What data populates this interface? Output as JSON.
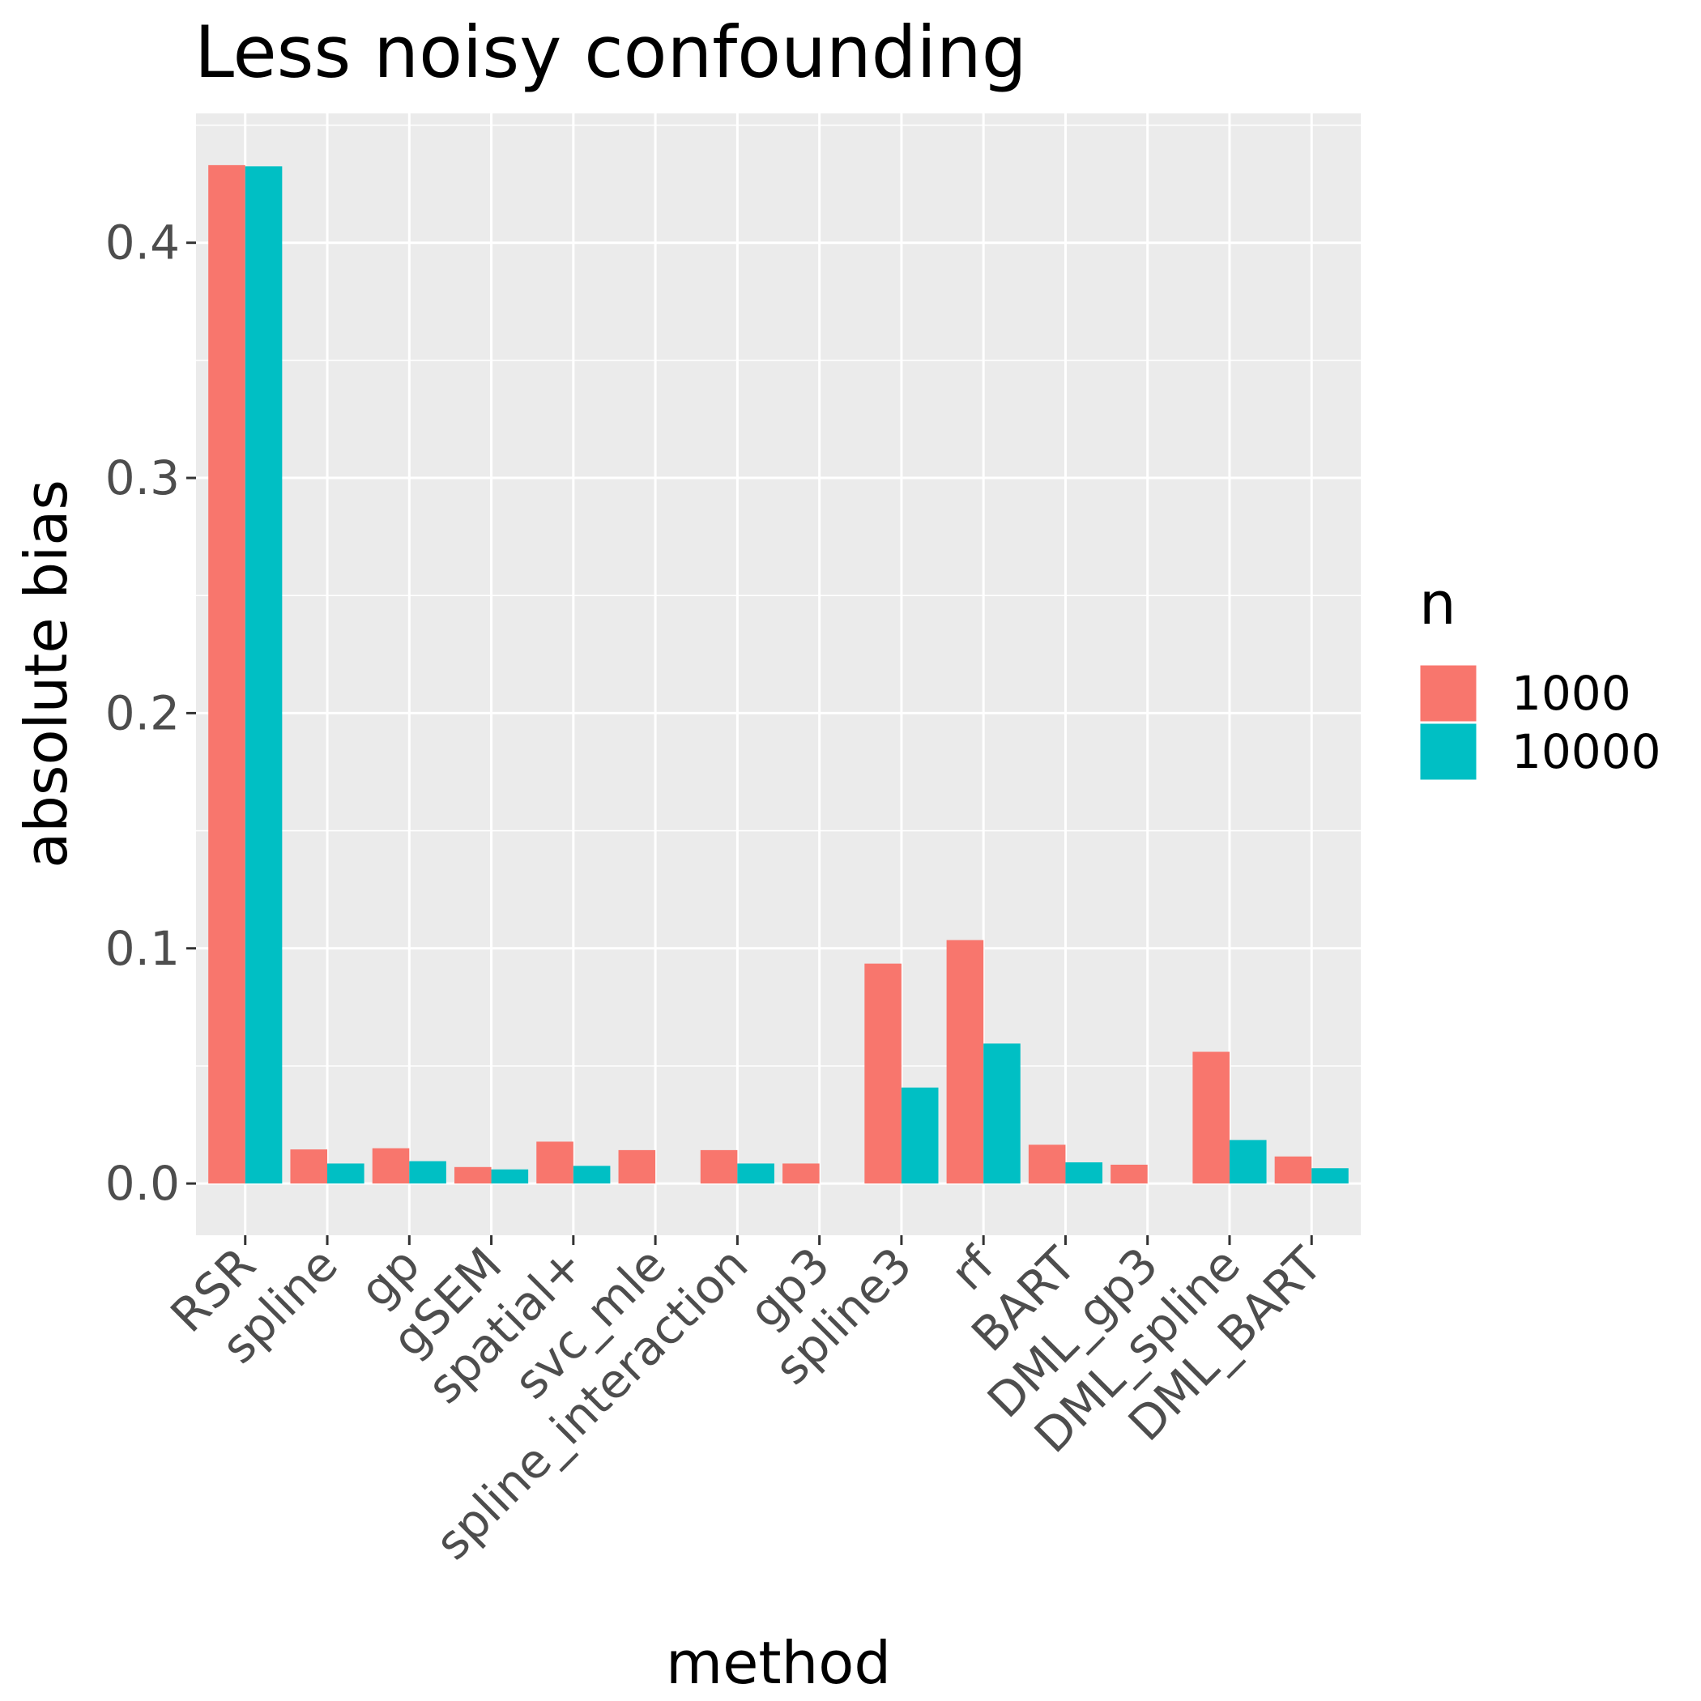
{
  "chart_data": {
    "type": "bar",
    "title": "Less noisy confounding",
    "xlabel": "method",
    "ylabel": "absolute bias",
    "categories": [
      "RSR",
      "spline",
      "gp",
      "gSEM",
      "spatial+",
      "svc_mle",
      "spline_interaction",
      "gp3",
      "spline3",
      "rf",
      "BART",
      "DML_gp3",
      "DML_spline",
      "DML_BART"
    ],
    "series": [
      {
        "name": "1000",
        "color": "#F8766D",
        "values": [
          0.433,
          0.0145,
          0.015,
          0.007,
          0.0178,
          0.0142,
          0.0142,
          0.0085,
          0.0935,
          0.1035,
          0.0165,
          0.008,
          0.056,
          0.0115
        ]
      },
      {
        "name": "10000",
        "color": "#00BFC4",
        "values": [
          0.4325,
          0.0085,
          0.0095,
          0.006,
          0.0075,
          null,
          0.0085,
          null,
          0.0408,
          0.0595,
          0.009,
          null,
          0.0185,
          0.0065
        ]
      }
    ],
    "ylim": [
      -0.022,
      0.455
    ],
    "yticks": [
      0.0,
      0.1,
      0.2,
      0.3,
      0.4
    ],
    "ytick_labels": [
      "0.0",
      "0.1",
      "0.2",
      "0.3",
      "0.4"
    ],
    "grid": true,
    "legend": {
      "title": "n",
      "position": "right"
    }
  }
}
